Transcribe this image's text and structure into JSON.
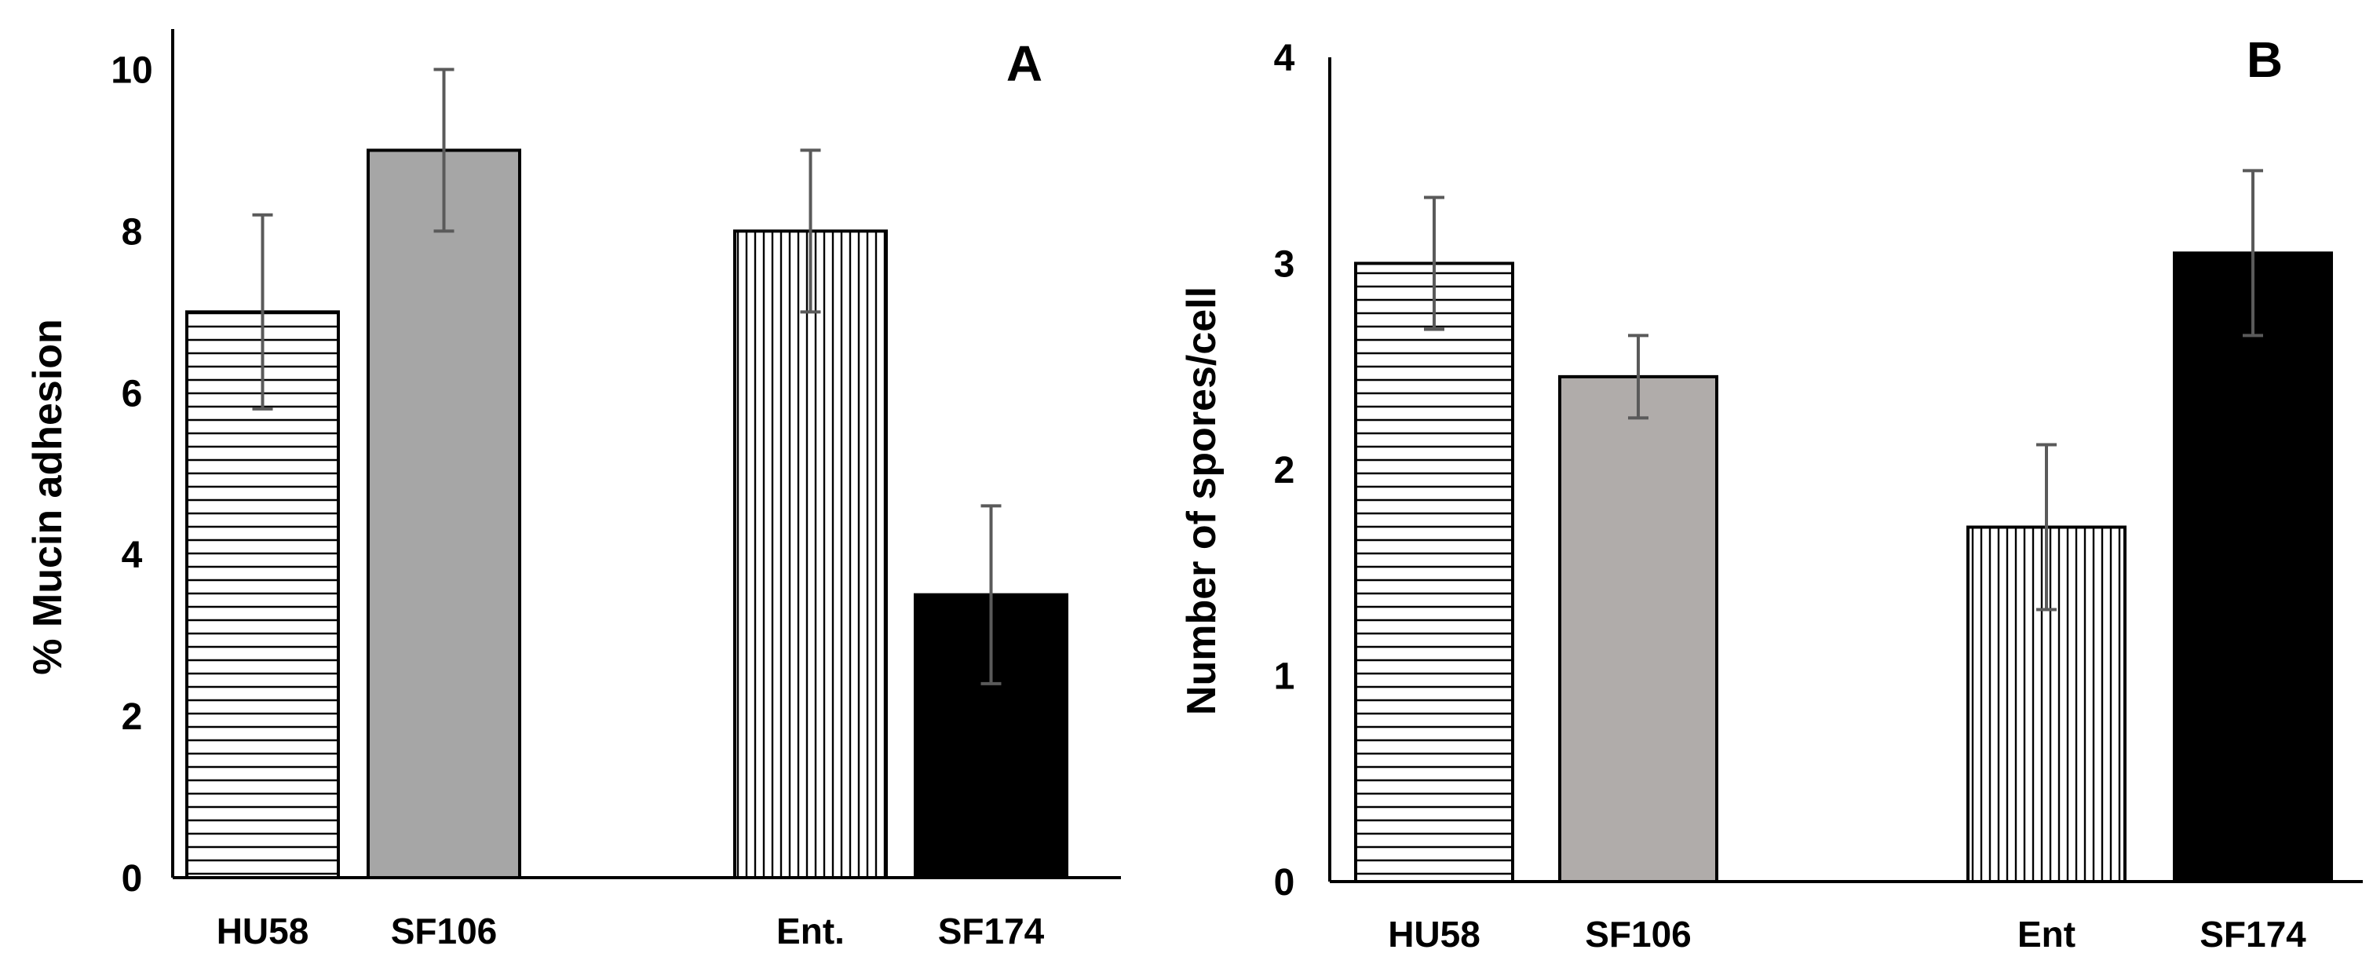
{
  "chart_data": [
    {
      "type": "bar",
      "panel_label": "A",
      "ylabel": "% Mucin adhesion",
      "ylim": [
        0,
        10.5
      ],
      "yticks": [
        0,
        2,
        4,
        6,
        8,
        10
      ],
      "grid": false,
      "categories": [
        "HU58",
        "SF106",
        "Ent.",
        "SF174"
      ],
      "values": [
        7.0,
        9.0,
        8.0,
        3.5
      ],
      "error": [
        1.2,
        1.0,
        1.0,
        1.1
      ],
      "patterns": [
        "horizontal-lines",
        "solid-gray",
        "vertical-lines",
        "solid-black"
      ],
      "colors": [
        "#ffffff",
        "#a6a6a6",
        "#ffffff",
        "#000000"
      ]
    },
    {
      "type": "bar",
      "panel_label": "B",
      "ylabel": "Number of spores/cell",
      "ylim": [
        0,
        4
      ],
      "yticks": [
        0,
        1,
        2,
        3,
        4
      ],
      "grid": false,
      "categories": [
        "HU58",
        "SF106",
        "Ent",
        "SF174"
      ],
      "values": [
        3.0,
        2.45,
        1.72,
        3.05
      ],
      "error": [
        0.32,
        0.2,
        0.4,
        0.4
      ],
      "patterns": [
        "horizontal-lines",
        "solid-gray",
        "vertical-lines",
        "solid-black"
      ],
      "colors": [
        "#ffffff",
        "#b0acaa",
        "#ffffff",
        "#000000"
      ]
    }
  ]
}
